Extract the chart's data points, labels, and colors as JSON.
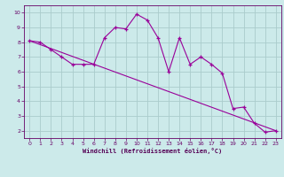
{
  "xlabel": "Windchill (Refroidissement éolien,°C)",
  "bg_color": "#cceaea",
  "grid_color": "#aacccc",
  "line_color": "#990099",
  "x_data": [
    0,
    1,
    2,
    3,
    4,
    5,
    6,
    7,
    8,
    9,
    10,
    11,
    12,
    13,
    14,
    15,
    16,
    17,
    18,
    19,
    20,
    21,
    22,
    23
  ],
  "y_data": [
    8.1,
    8.0,
    7.5,
    7.0,
    6.5,
    6.5,
    6.5,
    8.3,
    9.0,
    8.9,
    9.9,
    9.5,
    8.3,
    6.0,
    8.3,
    6.5,
    7.0,
    6.5,
    5.9,
    3.5,
    3.6,
    2.5,
    1.9,
    2.0
  ],
  "trend_x": [
    0,
    23
  ],
  "trend_y": [
    8.1,
    2.0
  ],
  "ylim": [
    1.5,
    10.5
  ],
  "xlim": [
    -0.5,
    23.5
  ],
  "yticks": [
    2,
    3,
    4,
    5,
    6,
    7,
    8,
    9,
    10
  ],
  "xticks": [
    0,
    1,
    2,
    3,
    4,
    5,
    6,
    7,
    8,
    9,
    10,
    11,
    12,
    13,
    14,
    15,
    16,
    17,
    18,
    19,
    20,
    21,
    22,
    23
  ]
}
